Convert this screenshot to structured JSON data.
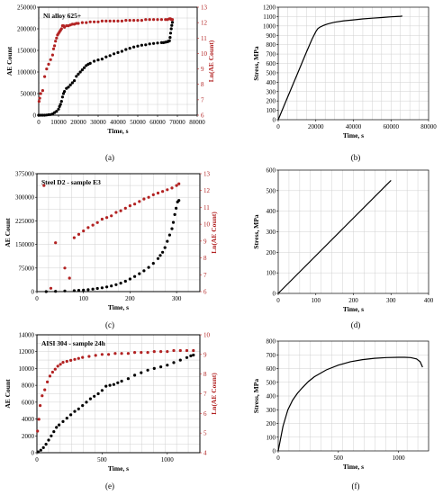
{
  "chart_data": [
    {
      "id": "a",
      "type": "scatter",
      "panel_label": "(a)",
      "annotation": "Ni alloy 625+",
      "xlabel": "Time, s",
      "ylabel": "AE Count",
      "ylabel_right": "Ln(AE Count)",
      "xlim": [
        0,
        80000
      ],
      "ylim": [
        0,
        250000
      ],
      "ylim_right": [
        6,
        13
      ],
      "xticks": [
        "0",
        "10000",
        "20000",
        "30000",
        "40000",
        "50000",
        "60000",
        "70000",
        "80000"
      ],
      "yticks": [
        "0",
        "50000",
        "100000",
        "150000",
        "200000",
        "250000"
      ],
      "yticks_right": [
        "6",
        "7",
        "8",
        "9",
        "10",
        "11",
        "12",
        "13"
      ],
      "grid": true,
      "series": [
        {
          "axis": "left",
          "color": "#000000",
          "x": [
            0,
            1000,
            2000,
            3000,
            4000,
            5000,
            6000,
            7000,
            8000,
            9000,
            10000,
            10500,
            11000,
            11500,
            12000,
            12500,
            13000,
            14000,
            15000,
            16000,
            17000,
            18000,
            19000,
            20000,
            21000,
            22000,
            23000,
            24000,
            25000,
            26000,
            28000,
            30000,
            32000,
            34000,
            36000,
            38000,
            40000,
            42000,
            44000,
            46000,
            48000,
            50000,
            52000,
            54000,
            56000,
            58000,
            60000,
            62000,
            63000,
            64000,
            65000,
            65500,
            66000,
            66300,
            66600,
            66900,
            67200,
            67500
          ],
          "y": [
            0,
            0,
            0,
            0,
            500,
            1000,
            1500,
            3000,
            6000,
            9000,
            14000,
            20000,
            25000,
            32000,
            42000,
            50000,
            55000,
            62000,
            65000,
            70000,
            75000,
            80000,
            90000,
            95000,
            100000,
            105000,
            110000,
            115000,
            118000,
            120000,
            125000,
            128000,
            130000,
            135000,
            138000,
            142000,
            145000,
            148000,
            152000,
            155000,
            158000,
            160000,
            162000,
            163000,
            165000,
            166000,
            167000,
            168000,
            168000,
            169000,
            170000,
            171000,
            172000,
            180000,
            190000,
            200000,
            208000,
            215000
          ]
        },
        {
          "axis": "right",
          "color": "#b22222",
          "x": [
            200,
            500,
            1000,
            2000,
            3000,
            4000,
            5000,
            6000,
            7000,
            7500,
            8000,
            8500,
            9000,
            9500,
            10000,
            10500,
            11000,
            11500,
            12000,
            12500,
            13000,
            14000,
            15000,
            16000,
            17000,
            18000,
            19000,
            20000,
            22000,
            24000,
            26000,
            28000,
            30000,
            32000,
            34000,
            36000,
            38000,
            40000,
            42000,
            44000,
            46000,
            48000,
            50000,
            52000,
            54000,
            56000,
            58000,
            60000,
            62000,
            64000,
            65000,
            66000,
            66500,
            67000,
            67500
          ],
          "y": [
            6.9,
            7.1,
            7.4,
            7.6,
            8.5,
            9.0,
            9.3,
            9.6,
            9.9,
            10.3,
            10.5,
            10.8,
            11.0,
            11.2,
            11.3,
            11.4,
            11.5,
            11.6,
            11.8,
            11.8,
            11.7,
            11.8,
            11.8,
            11.85,
            11.9,
            11.9,
            11.95,
            11.95,
            12.0,
            12.0,
            12.05,
            12.05,
            12.05,
            12.1,
            12.1,
            12.1,
            12.1,
            12.1,
            12.1,
            12.15,
            12.15,
            12.15,
            12.15,
            12.15,
            12.2,
            12.2,
            12.2,
            12.2,
            12.2,
            12.2,
            12.2,
            12.25,
            12.25,
            12.2,
            12.2
          ]
        }
      ]
    },
    {
      "id": "b",
      "type": "line",
      "panel_label": "(b)",
      "xlabel": "Time, s",
      "ylabel": "Stress, MPa",
      "xlim": [
        0,
        80000
      ],
      "ylim": [
        0,
        1200
      ],
      "xticks": [
        "0",
        "20000",
        "40000",
        "60000",
        "80000"
      ],
      "yticks": [
        "0",
        "100",
        "200",
        "300",
        "400",
        "500",
        "600",
        "700",
        "800",
        "900",
        "1000",
        "1100",
        "1200"
      ],
      "grid": true,
      "series": [
        {
          "color": "#000000",
          "x": [
            0,
            5000,
            10000,
            15000,
            18000,
            20000,
            21000,
            22000,
            24000,
            26000,
            28000,
            30000,
            35000,
            40000,
            45000,
            50000,
            55000,
            60000,
            65000,
            66000
          ],
          "y": [
            0,
            240,
            480,
            720,
            860,
            940,
            970,
            985,
            1005,
            1020,
            1030,
            1040,
            1055,
            1065,
            1075,
            1083,
            1090,
            1097,
            1103,
            1105
          ]
        }
      ]
    },
    {
      "id": "c",
      "type": "scatter",
      "panel_label": "(c)",
      "annotation": "Steel D2 - sample E3",
      "xlabel": "Time, s",
      "ylabel": "AE Count",
      "ylabel_right": "Ln(AE Count)",
      "xlim": [
        0,
        350
      ],
      "ylim": [
        0,
        375000
      ],
      "ylim_right": [
        6,
        13
      ],
      "xticks": [
        "0",
        "100",
        "200",
        "300"
      ],
      "yticks": [
        "0",
        "75000",
        "150000",
        "225000",
        "300000",
        "375000"
      ],
      "yticks_right": [
        "6",
        "7",
        "8",
        "9",
        "10",
        "11",
        "12",
        "13"
      ],
      "grid": true,
      "series": [
        {
          "axis": "left",
          "color": "#000000",
          "x": [
            20,
            40,
            60,
            80,
            90,
            100,
            110,
            120,
            130,
            140,
            150,
            160,
            170,
            180,
            190,
            200,
            210,
            220,
            230,
            240,
            250,
            260,
            265,
            270,
            275,
            280,
            285,
            290,
            293,
            296,
            299,
            302,
            305
          ],
          "y": [
            0,
            1000,
            2000,
            3000,
            4000,
            5000,
            6000,
            8000,
            10000,
            12000,
            15000,
            18000,
            22000,
            27000,
            33000,
            40000,
            48000,
            57000,
            66000,
            77000,
            90000,
            105000,
            115000,
            125000,
            140000,
            160000,
            180000,
            200000,
            220000,
            245000,
            265000,
            285000,
            290000
          ]
        },
        {
          "axis": "right",
          "color": "#b22222",
          "x": [
            15,
            30,
            40,
            60,
            70,
            80,
            90,
            100,
            110,
            120,
            130,
            140,
            150,
            160,
            170,
            180,
            190,
            200,
            210,
            220,
            230,
            240,
            250,
            260,
            270,
            280,
            290,
            300,
            305
          ],
          "y": [
            12.3,
            6.2,
            8.9,
            7.4,
            6.8,
            9.2,
            9.4,
            9.6,
            9.8,
            9.95,
            10.1,
            10.3,
            10.4,
            10.5,
            10.7,
            10.8,
            10.95,
            11.1,
            11.2,
            11.35,
            11.5,
            11.6,
            11.75,
            11.85,
            11.95,
            12.05,
            12.15,
            12.3,
            12.4
          ]
        }
      ]
    },
    {
      "id": "d",
      "type": "line",
      "panel_label": "(d)",
      "xlabel": "Time, s",
      "ylabel": "Stress, MPa",
      "xlim": [
        0,
        400
      ],
      "ylim": [
        0,
        600
      ],
      "xticks": [
        "0",
        "100",
        "200",
        "300",
        "400"
      ],
      "yticks": [
        "0",
        "100",
        "200",
        "300",
        "400",
        "500",
        "600"
      ],
      "grid": true,
      "series": [
        {
          "color": "#000000",
          "x": [
            0,
            300
          ],
          "y": [
            0,
            550
          ]
        }
      ]
    },
    {
      "id": "e",
      "type": "scatter",
      "panel_label": "(e)",
      "annotation": "AISI 304 - sample 24h",
      "xlabel": "Time, s",
      "ylabel": "AE Count",
      "ylabel_right": "Ln(AE Count)",
      "xlim": [
        0,
        1250
      ],
      "ylim": [
        0,
        14000
      ],
      "ylim_right": [
        4,
        10
      ],
      "xticks": [
        "0",
        "500",
        "1000"
      ],
      "yticks": [
        "0",
        "2000",
        "4000",
        "6000",
        "8000",
        "10000",
        "12000",
        "14000"
      ],
      "yticks_right": [
        "4",
        "5",
        "6",
        "7",
        "8",
        "9",
        "10"
      ],
      "grid": true,
      "series": [
        {
          "axis": "left",
          "color": "#000000",
          "x": [
            10,
            30,
            50,
            70,
            90,
            110,
            130,
            150,
            170,
            200,
            230,
            260,
            290,
            320,
            350,
            380,
            410,
            440,
            470,
            500,
            530,
            560,
            590,
            620,
            650,
            700,
            750,
            800,
            850,
            900,
            950,
            1000,
            1050,
            1100,
            1150,
            1180,
            1200
          ],
          "y": [
            100,
            300,
            600,
            1000,
            1500,
            2000,
            2500,
            3000,
            3300,
            3700,
            4100,
            4500,
            4900,
            5200,
            5600,
            6000,
            6400,
            6700,
            7000,
            7400,
            7900,
            8000,
            8100,
            8300,
            8500,
            8800,
            9200,
            9500,
            9800,
            10000,
            10200,
            10400,
            10700,
            11000,
            11300,
            11500,
            11600
          ]
        },
        {
          "axis": "right",
          "color": "#b22222",
          "x": [
            5,
            15,
            25,
            40,
            60,
            80,
            100,
            120,
            140,
            160,
            180,
            200,
            230,
            260,
            290,
            320,
            350,
            400,
            450,
            500,
            550,
            600,
            650,
            700,
            750,
            800,
            850,
            900,
            950,
            1000,
            1050,
            1100,
            1150,
            1200
          ],
          "y": [
            5.1,
            5.7,
            6.4,
            6.9,
            7.2,
            7.6,
            7.9,
            8.1,
            8.25,
            8.4,
            8.5,
            8.6,
            8.65,
            8.7,
            8.75,
            8.8,
            8.85,
            8.9,
            8.95,
            9.0,
            9.0,
            9.05,
            9.05,
            9.05,
            9.1,
            9.1,
            9.1,
            9.15,
            9.15,
            9.15,
            9.2,
            9.2,
            9.2,
            9.2
          ]
        }
      ]
    },
    {
      "id": "f",
      "type": "line",
      "panel_label": "(f)",
      "xlabel": "Time, s",
      "ylabel": "Stress, MPa",
      "xlim": [
        0,
        1250
      ],
      "ylim": [
        0,
        800
      ],
      "xticks": [
        "0",
        "500",
        "1000"
      ],
      "yticks": [
        "0",
        "100",
        "200",
        "300",
        "400",
        "500",
        "600",
        "700",
        "800"
      ],
      "grid": true,
      "series": [
        {
          "color": "#000000",
          "x": [
            0,
            40,
            80,
            120,
            160,
            200,
            250,
            300,
            400,
            500,
            600,
            700,
            800,
            900,
            1000,
            1050,
            1100,
            1150,
            1180,
            1200
          ],
          "y": [
            0,
            180,
            300,
            370,
            420,
            460,
            505,
            540,
            590,
            625,
            650,
            665,
            675,
            680,
            682,
            682,
            680,
            670,
            650,
            610
          ]
        }
      ]
    }
  ]
}
